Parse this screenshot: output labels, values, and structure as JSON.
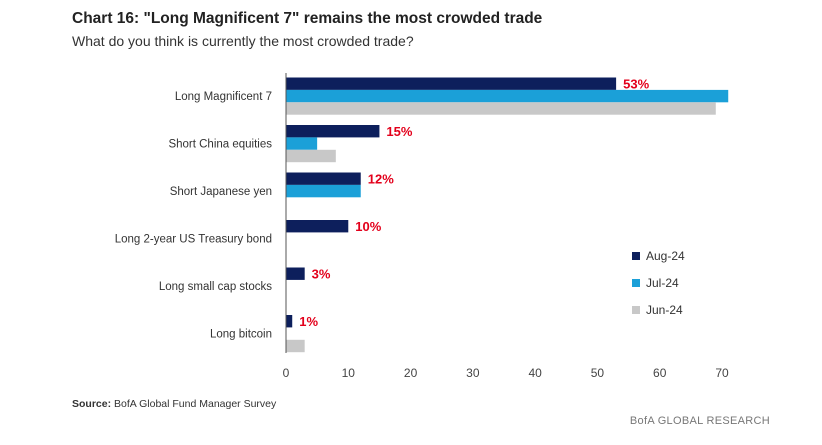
{
  "chart_data": {
    "type": "bar",
    "orientation": "horizontal",
    "title": "Chart 16: \"Long Magnificent 7\" remains the most crowded trade",
    "subtitle": "What do you think is currently the most crowded trade?",
    "categories": [
      "Long Magnificent 7",
      "Short China equities",
      "Short Japanese yen",
      "Long 2-year US Treasury bond",
      "Long small cap stocks",
      "Long bitcoin"
    ],
    "series": [
      {
        "name": "Aug-24",
        "color": "#0d1f5c",
        "values": [
          53,
          15,
          12,
          10,
          3,
          1
        ]
      },
      {
        "name": "Jul-24",
        "color": "#1ba0d8",
        "values": [
          71,
          5,
          12,
          0,
          0,
          0
        ]
      },
      {
        "name": "Jun-24",
        "color": "#c8c8c8",
        "values": [
          69,
          8,
          0,
          0,
          0,
          3
        ]
      }
    ],
    "data_labels": [
      "53%",
      "15%",
      "12%",
      "10%",
      "3%",
      "1%"
    ],
    "data_label_color": "#e3001b",
    "xlim": [
      0,
      70
    ],
    "xticks": [
      0,
      10,
      20,
      30,
      40,
      50,
      60,
      70
    ],
    "grid": false,
    "legend_position": "right"
  },
  "footer": {
    "source_label": "Source:",
    "source_text": " BofA Global Fund Manager Survey",
    "brand": "BofA GLOBAL RESEARCH"
  }
}
